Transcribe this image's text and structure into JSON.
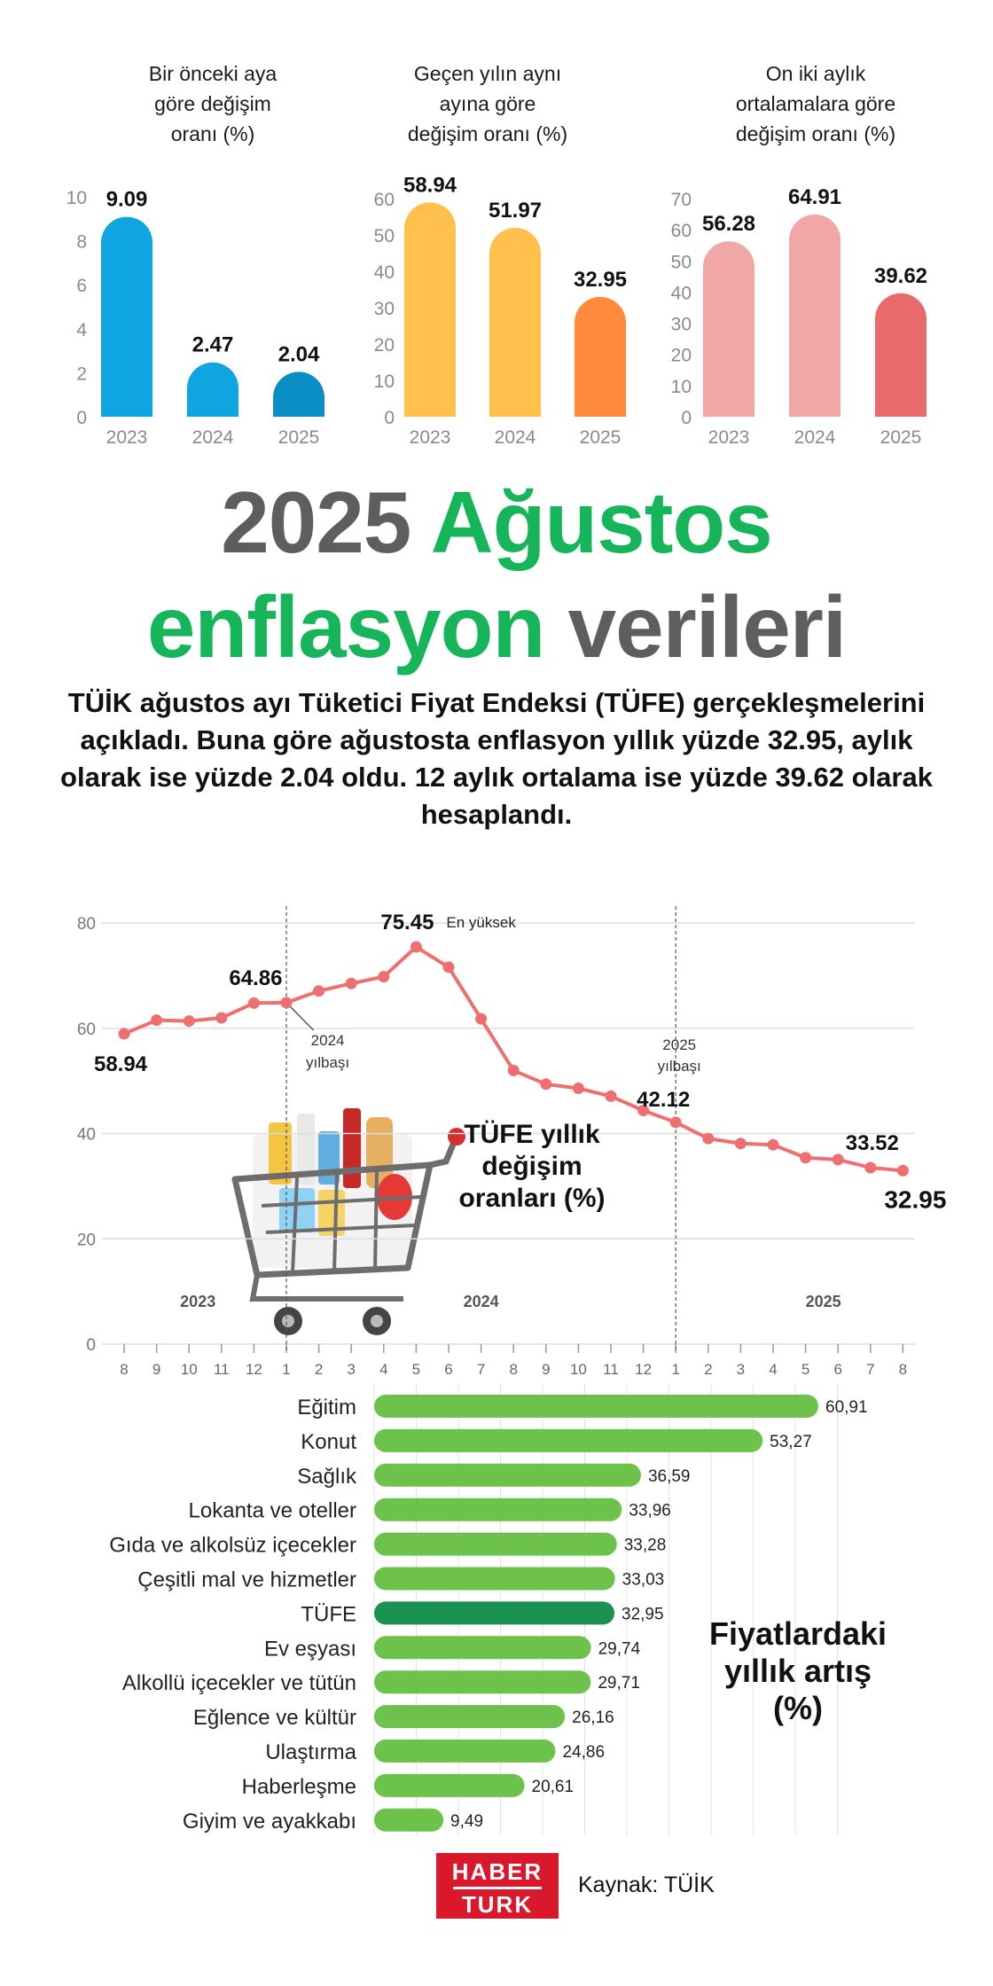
{
  "mini_titles": {
    "c1": [
      "Bir önceki aya",
      "göre değişim",
      "oranı (%)"
    ],
    "c2": [
      "Geçen yılın aynı",
      "ayına göre",
      "değişim oranı (%)"
    ],
    "c3": [
      "On iki aylık",
      "ortalamalara göre",
      "değişim oranı (%)"
    ]
  },
  "headline": {
    "part1": "2025 ",
    "part2": "Ağustos",
    "part3": "enflasyon",
    "part4": " verileri"
  },
  "intro": "TÜİK ağustos ayı Tüketici Fiyat Endeksi (TÜFE) gerçekleşmelerini açıkladı. Buna göre ağustosta enflasyon yıllık yüzde 32.95, aylık olarak ise yüzde 2.04 oldu. 12 aylık ortalama ise yüzde 39.62 olarak hesaplandı.",
  "colors": {
    "blue": "#0ea5e0",
    "blue_dark": "#0b8ec4",
    "yellow": "#ffc04d",
    "orange": "#ff8a3d",
    "pink": "#f2a7a7",
    "red": "#e86a6a",
    "line": "#ee6f6f",
    "bar_green": "#6cc24a",
    "bar_dark_green": "#1a9150",
    "headline_green": "#17b55a",
    "headline_gray": "#5e5e5e"
  },
  "chart_data": [
    {
      "type": "bar",
      "title": "Bir önceki aya göre değişim oranı (%)",
      "categories": [
        "2023",
        "2024",
        "2025"
      ],
      "values": [
        9.09,
        2.47,
        2.04
      ],
      "value_labels": [
        "9.09",
        "2.47",
        "2.04"
      ],
      "ylim": [
        0,
        10
      ],
      "yticks": [
        "0",
        "2",
        "4",
        "6",
        "8",
        "10"
      ],
      "bar_colors": [
        "#0ea5e0",
        "#0ea5e0",
        "#0b8ec4"
      ]
    },
    {
      "type": "bar",
      "title": "Geçen yılın aynı ayına göre değişim oranı (%)",
      "categories": [
        "2023",
        "2024",
        "2025"
      ],
      "values": [
        58.94,
        51.97,
        32.95
      ],
      "value_labels": [
        "58.94",
        "51.97",
        "32.95"
      ],
      "ylim": [
        0,
        60
      ],
      "yticks": [
        "0",
        "10",
        "20",
        "30",
        "40",
        "50",
        "60"
      ],
      "bar_colors": [
        "#ffc04d",
        "#ffc04d",
        "#ff8a3d"
      ]
    },
    {
      "type": "bar",
      "title": "On iki aylık ortalamalara göre değişim oranı (%)",
      "categories": [
        "2023",
        "2024",
        "2025"
      ],
      "values": [
        56.28,
        64.91,
        39.62
      ],
      "value_labels": [
        "56.28",
        "64.91",
        "39.62"
      ],
      "ylim": [
        0,
        70
      ],
      "yticks": [
        "0",
        "10",
        "20",
        "30",
        "40",
        "50",
        "60",
        "70"
      ],
      "bar_colors": [
        "#f2a7a7",
        "#f2a7a7",
        "#e86a6a"
      ]
    },
    {
      "type": "line",
      "title": "TÜFE yıllık değişim oranları (%)",
      "x": [
        "8",
        "9",
        "10",
        "11",
        "12",
        "1",
        "2",
        "3",
        "4",
        "5",
        "6",
        "7",
        "8",
        "9",
        "10",
        "11",
        "12",
        "1",
        "2",
        "3",
        "4",
        "5",
        "6",
        "7",
        "8"
      ],
      "values": [
        58.94,
        61.53,
        61.36,
        61.98,
        64.77,
        64.86,
        67.07,
        68.5,
        69.8,
        75.45,
        71.6,
        61.78,
        51.97,
        49.38,
        48.58,
        47.09,
        44.38,
        42.12,
        39.05,
        38.1,
        37.86,
        35.41,
        35.05,
        33.52,
        32.95
      ],
      "ylim": [
        0,
        80
      ],
      "yticks": [
        "0",
        "20",
        "40",
        "60",
        "80"
      ],
      "year_labels": [
        "2023",
        "2024",
        "2025"
      ],
      "dividers": [
        "2024\nyılbaşı",
        "2025\nyılbaşı"
      ],
      "annotations": {
        "first": "58.94",
        "jan2024": "64.86",
        "peak": "75.45",
        "peak_note": "En yüksek",
        "jan2025": "42.12",
        "jul2025": "33.52",
        "last": "32.95"
      },
      "grid": true
    },
    {
      "type": "bar",
      "orientation": "horizontal",
      "title": "Fiyatlardaki yıllık artış (%)",
      "categories": [
        "Eğitim",
        "Konut",
        "Sağlık",
        "Lokanta ve oteller",
        "Gıda ve alkolsüz içecekler",
        "Çeşitli mal ve hizmetler",
        "TÜFE",
        "Ev eşyası",
        "Alkollü içecekler ve tütün",
        "Eğlence ve kültür",
        "Ulaştırma",
        "Haberleşme",
        "Giyim ve ayakkabı"
      ],
      "values": [
        60.91,
        53.27,
        36.59,
        33.96,
        33.28,
        33.03,
        32.95,
        29.74,
        29.71,
        26.16,
        24.86,
        20.61,
        9.49
      ],
      "value_labels": [
        "60,91",
        "53,27",
        "36,59",
        "33,96",
        "33,28",
        "33,03",
        "32,95",
        "29,74",
        "29,71",
        "26,16",
        "24,86",
        "20,61",
        "9,49"
      ],
      "highlight": "TÜFE"
    }
  ],
  "line_title_lines": [
    "TÜFE yıllık",
    "değişim",
    "oranları (%)"
  ],
  "hbar_title_lines": [
    "Fiyatlardaki",
    "yıllık artış",
    "(%)"
  ],
  "footer": {
    "logo_top": "HABER",
    "logo_bottom": "TURK",
    "source": "Kaynak: TÜİK"
  }
}
